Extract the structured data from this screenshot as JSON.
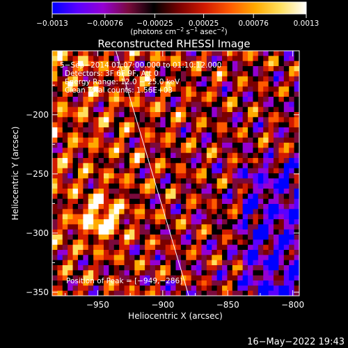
{
  "chart_data": {
    "type": "heatmap",
    "title": "Reconstructed RHESSI Image",
    "xlabel": "Heliocentric X (arcsec)",
    "ylabel": "Heliocentric Y (arcsec)",
    "xlim": [
      -985,
      -795
    ],
    "ylim": [
      -353,
      -146
    ],
    "x_ticks": [
      -950,
      -900,
      -850,
      -800
    ],
    "x_tick_labels": [
      "−950",
      "−900",
      "−850",
      "−800"
    ],
    "y_ticks": [
      -350,
      -300,
      -250,
      -200
    ],
    "y_tick_labels": [
      "−350",
      "−300",
      "−250",
      "−200"
    ],
    "colorbar": {
      "min": -0.0013,
      "max": 0.0013,
      "tick_values": [
        -0.0013,
        -0.00076,
        -0.00025,
        0.00025,
        0.00076,
        0.0013
      ],
      "tick_labels": [
        "−0.0013",
        "−0.00076",
        "−0.00025",
        "0.00025",
        "0.00076",
        "0.0013"
      ],
      "units_parts": [
        "(photons cm",
        "−2",
        " s",
        "−1",
        " asec",
        "−2",
        ")"
      ],
      "colormap": [
        "#0000ff",
        "#5a00ff",
        "#9400d3",
        "#7a0a3c",
        "#000000",
        "#7a0000",
        "#d11a00",
        "#ff5a00",
        "#ffaa00",
        "#ffe060",
        "#ffffff"
      ]
    },
    "annotations": [
      "5−Sep−2014 01:07:00.000 to 01:10:12.000",
      "Detectors: 3F 6F 9F, Att 0",
      "Energy Range: 12.0 − 25.0 keV",
      "Clean     Total counts: 1.56E+03"
    ],
    "peak_label": "Position of Peak = [−949,−286]",
    "peak": {
      "x": -949,
      "y": -286
    },
    "limb_line": [
      {
        "x": -936,
        "y": -146
      },
      {
        "x": -880,
        "y": -353
      }
    ],
    "grid": false
  },
  "footer": {
    "timestamp": "16−May−2022 19:43"
  }
}
